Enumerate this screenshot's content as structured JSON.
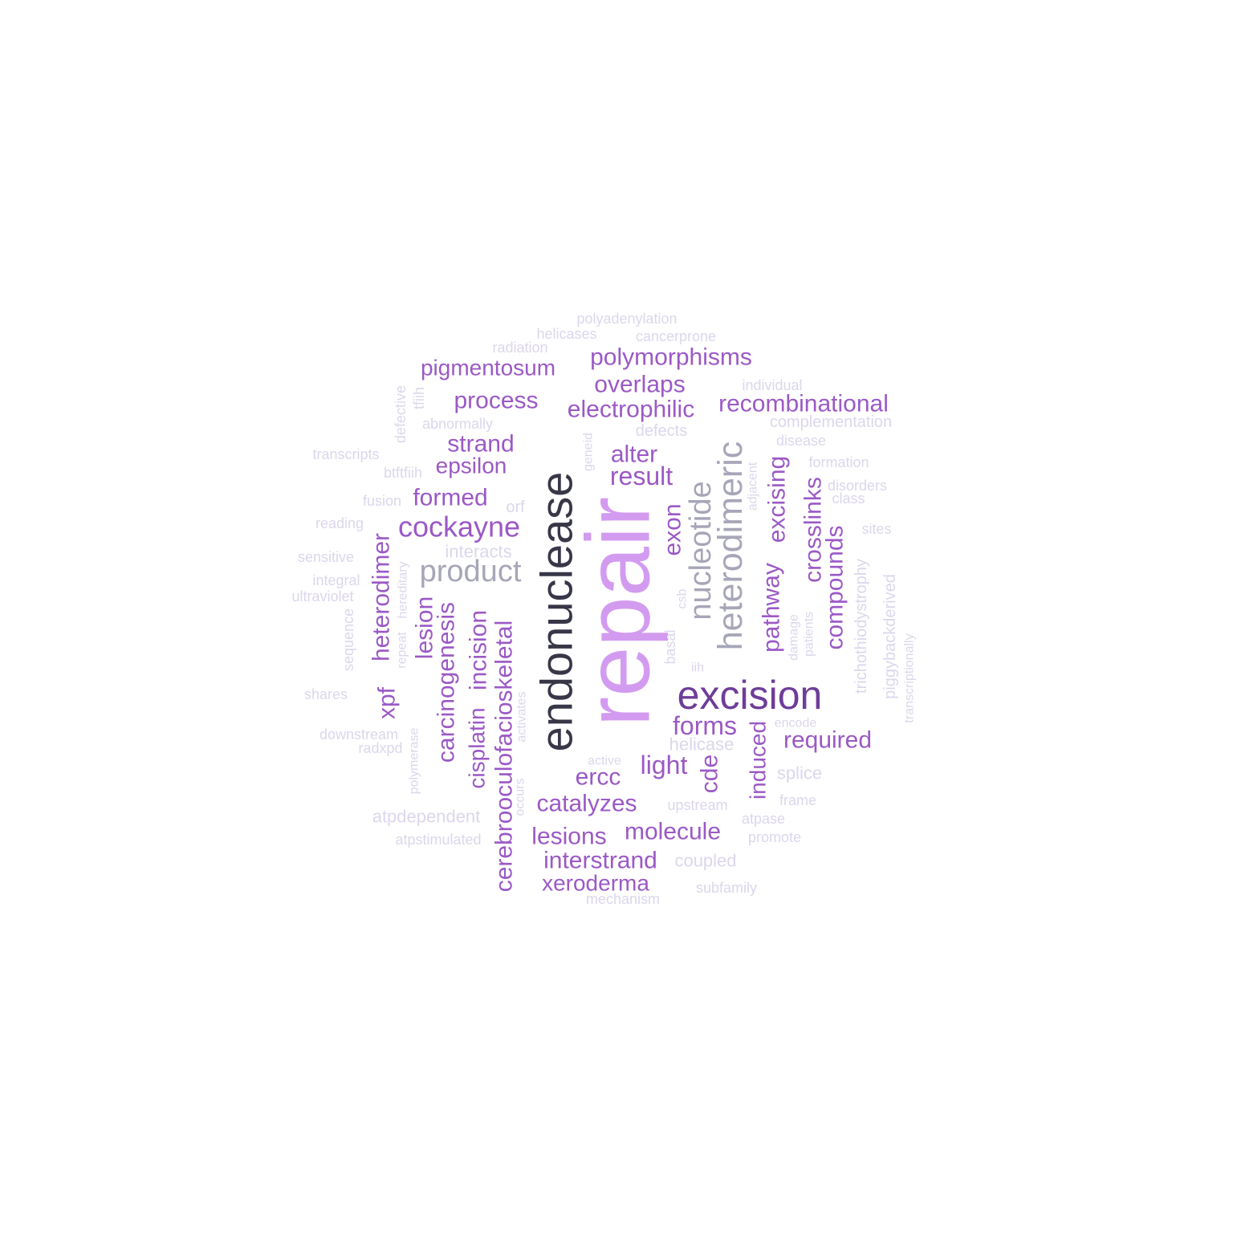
{
  "palette": {
    "dark": "#373748",
    "deep_purple": "#6e3d99",
    "purple": "#9b59c5",
    "light_purple": "#d39bf0",
    "grey": "#a6a6b8",
    "faint": "#dcd6ec"
  },
  "words": [
    {
      "text": "repair",
      "color": "light_purple"
    },
    {
      "text": "endonuclease",
      "color": "dark"
    },
    {
      "text": "excision",
      "color": "deep_purple"
    },
    {
      "text": "heterodimeric",
      "color": "grey"
    },
    {
      "text": "nucleotide",
      "color": "grey"
    },
    {
      "text": "product",
      "color": "grey"
    },
    {
      "text": "cockayne",
      "color": "purple"
    },
    {
      "text": "cerebrooculofacioskeletal",
      "color": "purple"
    },
    {
      "text": "polymorphisms",
      "color": "purple"
    },
    {
      "text": "recombinational",
      "color": "purple"
    },
    {
      "text": "electrophilic",
      "color": "purple"
    },
    {
      "text": "overlaps",
      "color": "purple"
    },
    {
      "text": "pigmentosum",
      "color": "purple"
    },
    {
      "text": "process",
      "color": "purple"
    },
    {
      "text": "strand",
      "color": "purple"
    },
    {
      "text": "epsilon",
      "color": "purple"
    },
    {
      "text": "formed",
      "color": "purple"
    },
    {
      "text": "alter",
      "color": "purple"
    },
    {
      "text": "result",
      "color": "purple"
    },
    {
      "text": "exon",
      "color": "purple"
    },
    {
      "text": "excising",
      "color": "purple"
    },
    {
      "text": "crosslinks",
      "color": "purple"
    },
    {
      "text": "compounds",
      "color": "purple"
    },
    {
      "text": "pathway",
      "color": "purple"
    },
    {
      "text": "heterodimer",
      "color": "purple"
    },
    {
      "text": "lesion",
      "color": "purple"
    },
    {
      "text": "carcinogenesis",
      "color": "purple"
    },
    {
      "text": "incision",
      "color": "purple"
    },
    {
      "text": "cisplatin",
      "color": "purple"
    },
    {
      "text": "xpf",
      "color": "purple"
    },
    {
      "text": "forms",
      "color": "purple"
    },
    {
      "text": "required",
      "color": "purple"
    },
    {
      "text": "induced",
      "color": "purple"
    },
    {
      "text": "cde",
      "color": "purple"
    },
    {
      "text": "light",
      "color": "purple"
    },
    {
      "text": "ercc",
      "color": "purple"
    },
    {
      "text": "catalyzes",
      "color": "purple"
    },
    {
      "text": "molecule",
      "color": "purple"
    },
    {
      "text": "lesions",
      "color": "purple"
    },
    {
      "text": "interstrand",
      "color": "purple"
    },
    {
      "text": "xeroderma",
      "color": "purple"
    },
    {
      "text": "polyadenylation",
      "color": "faint"
    },
    {
      "text": "helicases",
      "color": "faint"
    },
    {
      "text": "cancerprone",
      "color": "faint"
    },
    {
      "text": "radiation",
      "color": "faint"
    },
    {
      "text": "individual",
      "color": "faint"
    },
    {
      "text": "complementation",
      "color": "faint"
    },
    {
      "text": "defects",
      "color": "faint"
    },
    {
      "text": "disease",
      "color": "faint"
    },
    {
      "text": "formation",
      "color": "faint"
    },
    {
      "text": "disorders",
      "color": "faint"
    },
    {
      "text": "class",
      "color": "faint"
    },
    {
      "text": "sites",
      "color": "faint"
    },
    {
      "text": "abnormally",
      "color": "faint"
    },
    {
      "text": "defective",
      "color": "faint"
    },
    {
      "text": "tfiih",
      "color": "faint"
    },
    {
      "text": "transcripts",
      "color": "faint"
    },
    {
      "text": "btftfiih",
      "color": "faint"
    },
    {
      "text": "fusion",
      "color": "faint"
    },
    {
      "text": "reading",
      "color": "faint"
    },
    {
      "text": "orf",
      "color": "faint"
    },
    {
      "text": "interacts",
      "color": "faint"
    },
    {
      "text": "sensitive",
      "color": "faint"
    },
    {
      "text": "integral",
      "color": "faint"
    },
    {
      "text": "ultraviolet",
      "color": "faint"
    },
    {
      "text": "sequence",
      "color": "faint"
    },
    {
      "text": "repeat",
      "color": "faint"
    },
    {
      "text": "hereditary",
      "color": "faint"
    },
    {
      "text": "shares",
      "color": "faint"
    },
    {
      "text": "downstream",
      "color": "faint"
    },
    {
      "text": "radxpd",
      "color": "faint"
    },
    {
      "text": "polymerase",
      "color": "faint"
    },
    {
      "text": "activates",
      "color": "faint"
    },
    {
      "text": "occurs",
      "color": "faint"
    },
    {
      "text": "atpdependent",
      "color": "faint"
    },
    {
      "text": "atpstimulated",
      "color": "faint"
    },
    {
      "text": "geneid",
      "color": "faint"
    },
    {
      "text": "adjacent",
      "color": "faint"
    },
    {
      "text": "csb",
      "color": "faint"
    },
    {
      "text": "basal",
      "color": "faint"
    },
    {
      "text": "iih",
      "color": "faint"
    },
    {
      "text": "damage",
      "color": "faint"
    },
    {
      "text": "patients",
      "color": "faint"
    },
    {
      "text": "trichothiodystrophy",
      "color": "faint"
    },
    {
      "text": "piggybackderived",
      "color": "faint"
    },
    {
      "text": "transcriptionally",
      "color": "faint"
    },
    {
      "text": "encode",
      "color": "faint"
    },
    {
      "text": "helicase",
      "color": "faint"
    },
    {
      "text": "splice",
      "color": "faint"
    },
    {
      "text": "frame",
      "color": "faint"
    },
    {
      "text": "active",
      "color": "faint"
    },
    {
      "text": "upstream",
      "color": "faint"
    },
    {
      "text": "atpase",
      "color": "faint"
    },
    {
      "text": "promote",
      "color": "faint"
    },
    {
      "text": "coupled",
      "color": "faint"
    },
    {
      "text": "subfamily",
      "color": "faint"
    },
    {
      "text": "mechanism",
      "color": "faint"
    }
  ]
}
